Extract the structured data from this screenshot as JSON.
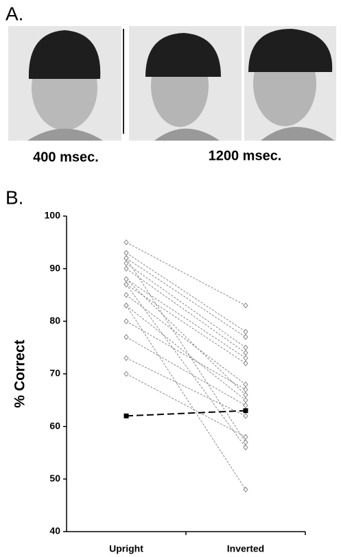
{
  "panel_a": {
    "label": "A.",
    "captions": [
      "400 msec.",
      "1200 msec."
    ]
  },
  "panel_b_label": "B.",
  "chart_data": {
    "type": "line",
    "ylabel": "% Correct",
    "categories": [
      "Upright",
      "Inverted"
    ],
    "ylim": [
      40,
      100
    ],
    "yticks": [
      40,
      50,
      60,
      70,
      80,
      90,
      100
    ],
    "grid": false,
    "series": [
      {
        "color": "#7a7a7a",
        "marker": "diamond",
        "dash": "3,2",
        "values": [
          95,
          83
        ]
      },
      {
        "color": "#7a7a7a",
        "marker": "diamond",
        "dash": "3,2",
        "values": [
          93,
          78
        ]
      },
      {
        "color": "#7a7a7a",
        "marker": "diamond",
        "dash": "3,2",
        "values": [
          92,
          77
        ]
      },
      {
        "color": "#7a7a7a",
        "marker": "diamond",
        "dash": "3,2",
        "values": [
          92,
          57
        ]
      },
      {
        "color": "#7a7a7a",
        "marker": "diamond",
        "dash": "3,2",
        "values": [
          91,
          75
        ]
      },
      {
        "color": "#7a7a7a",
        "marker": "diamond",
        "dash": "3,2",
        "values": [
          90,
          74
        ]
      },
      {
        "color": "#7a7a7a",
        "marker": "diamond",
        "dash": "3,2",
        "values": [
          88,
          73
        ]
      },
      {
        "color": "#7a7a7a",
        "marker": "diamond",
        "dash": "3,2",
        "values": [
          88,
          66
        ]
      },
      {
        "color": "#7a7a7a",
        "marker": "diamond",
        "dash": "3,2",
        "values": [
          87,
          72
        ]
      },
      {
        "color": "#7a7a7a",
        "marker": "diamond",
        "dash": "3,2",
        "values": [
          85,
          68
        ]
      },
      {
        "color": "#7a7a7a",
        "marker": "diamond",
        "dash": "3,2",
        "values": [
          83,
          48
        ]
      },
      {
        "color": "#7a7a7a",
        "marker": "diamond",
        "dash": "3,2",
        "values": [
          83,
          65
        ]
      },
      {
        "color": "#7a7a7a",
        "marker": "diamond",
        "dash": "3,2",
        "values": [
          80,
          67
        ]
      },
      {
        "color": "#7a7a7a",
        "marker": "diamond",
        "dash": "3,2",
        "values": [
          77,
          64
        ]
      },
      {
        "color": "#7a7a7a",
        "marker": "diamond",
        "dash": "3,2",
        "values": [
          73,
          62
        ]
      },
      {
        "color": "#7a7a7a",
        "marker": "diamond",
        "dash": "3,2",
        "values": [
          70,
          58
        ]
      },
      {
        "color": "#7a7a7a",
        "marker": "diamond",
        "dash": "3,2",
        "values": [
          87,
          56
        ]
      },
      {
        "color": "#000000",
        "marker": "square",
        "dash": "10,5",
        "values": [
          62,
          63
        ]
      }
    ]
  }
}
